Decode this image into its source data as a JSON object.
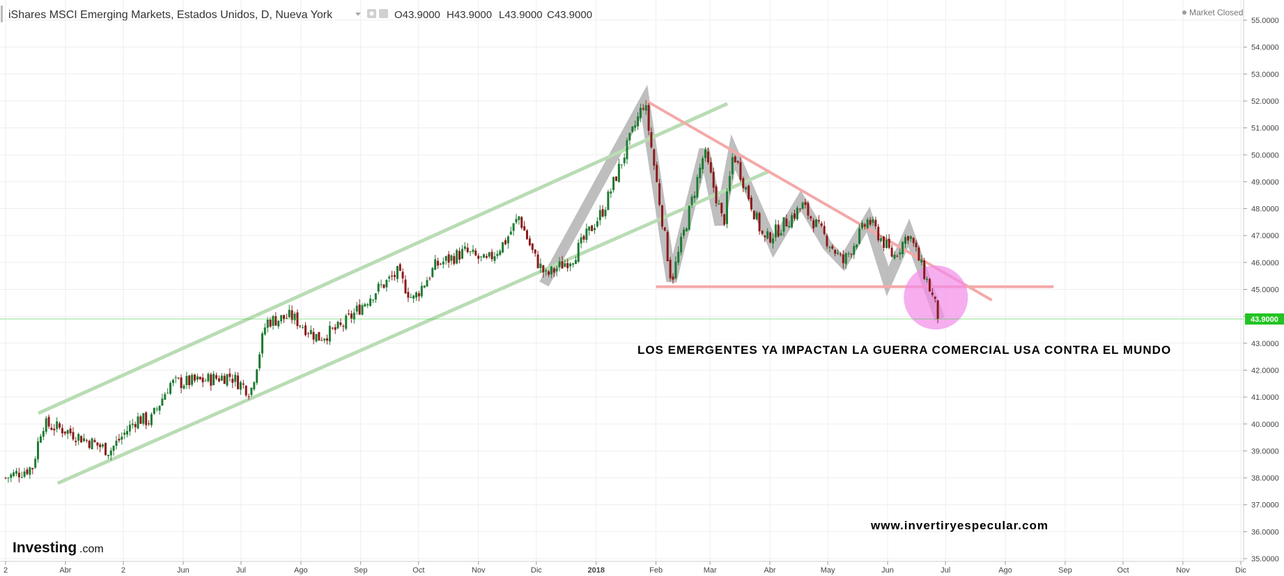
{
  "header": {
    "title": "iShares MSCI Emerging Markets, Estados Unidos, D, Nueva York",
    "open": "O43.9000",
    "high": "H43.9000",
    "low": "L43.9000",
    "close": "C43.9000",
    "market_status": "Market Closed"
  },
  "logo": {
    "main": "Investing",
    "sub": ".com"
  },
  "annotation": "LOS EMERGENTES YA IMPACTAN LA GUERRA COMERCIAL USA CONTRA EL MUNDO",
  "watermark": "www.invertiryespecular.com",
  "last_price_label": "43.9000",
  "colors": {
    "up": "#1e7b32",
    "down": "#8b1a1a",
    "channel": "#b9dcb4",
    "resistance": "#f4a9a9",
    "zigzag": "#a8a8a8",
    "highlight": "#f28ce8",
    "last_price": "#22c422",
    "grid": "#eeeeee"
  },
  "chart_data": {
    "type": "candlestick",
    "y_axis": {
      "min": 35,
      "max": 55,
      "ticks": [
        "55.0000",
        "54.0000",
        "53.0000",
        "52.0000",
        "51.0000",
        "50.0000",
        "49.0000",
        "48.0000",
        "47.0000",
        "46.0000",
        "45.0000",
        "44.0000",
        "43.0000",
        "42.0000",
        "41.0000",
        "40.0000",
        "39.0000",
        "38.0000",
        "37.0000",
        "36.0000",
        "35.0000"
      ]
    },
    "x_axis": {
      "labels": [
        "2",
        "Abr",
        "2",
        "Jun",
        "Jul",
        "Ago",
        "Sep",
        "Oct",
        "Nov",
        "Dic",
        "2018",
        "Feb",
        "Mar",
        "Abr",
        "May",
        "Jun",
        "Jul",
        "Ago",
        "Sep",
        "Oct",
        "Nov",
        "Dic"
      ],
      "months": [
        "2017-03",
        "2017-04",
        "2017-05",
        "2017-06",
        "2017-07",
        "2017-08",
        "2017-09",
        "2017-10",
        "2017-11",
        "2017-12",
        "2018-01",
        "2018-02",
        "2018-03",
        "2018-04",
        "2018-05",
        "2018-06",
        "2018-07",
        "2018-08",
        "2018-09",
        "2018-10",
        "2018-11",
        "2018-12"
      ]
    },
    "price_path": [
      [
        "2017-03-01",
        38.0
      ],
      [
        "2017-03-15",
        38.4
      ],
      [
        "2017-03-20",
        40.0
      ],
      [
        "2017-03-31",
        39.8
      ],
      [
        "2017-04-15",
        39.3
      ],
      [
        "2017-04-24",
        39.0
      ],
      [
        "2017-05-08",
        40.2
      ],
      [
        "2017-05-15",
        40.1
      ],
      [
        "2017-05-25",
        41.5
      ],
      [
        "2017-06-10",
        41.6
      ],
      [
        "2017-06-25",
        41.8
      ],
      [
        "2017-07-06",
        41.2
      ],
      [
        "2017-07-14",
        43.8
      ],
      [
        "2017-07-27",
        44.0
      ],
      [
        "2017-08-10",
        43.2
      ],
      [
        "2017-08-22",
        43.6
      ],
      [
        "2017-09-08",
        44.9
      ],
      [
        "2017-09-20",
        45.6
      ],
      [
        "2017-09-28",
        44.6
      ],
      [
        "2017-10-10",
        45.9
      ],
      [
        "2017-10-25",
        46.4
      ],
      [
        "2017-11-05",
        46.0
      ],
      [
        "2017-11-15",
        46.8
      ],
      [
        "2017-11-22",
        47.7
      ],
      [
        "2017-11-30",
        46.2
      ],
      [
        "2017-12-06",
        45.5
      ],
      [
        "2017-12-20",
        46.2
      ],
      [
        "2018-01-05",
        48.0
      ],
      [
        "2018-01-26",
        52.0
      ],
      [
        "2018-02-09",
        45.3
      ],
      [
        "2018-02-26",
        50.1
      ],
      [
        "2018-03-08",
        47.4
      ],
      [
        "2018-03-13",
        50.1
      ],
      [
        "2018-03-29",
        46.8
      ],
      [
        "2018-04-05",
        47.2
      ],
      [
        "2018-04-18",
        48.1
      ],
      [
        "2018-05-01",
        46.8
      ],
      [
        "2018-05-09",
        46.0
      ],
      [
        "2018-05-22",
        47.6
      ],
      [
        "2018-06-04",
        46.2
      ],
      [
        "2018-06-12",
        47.1
      ],
      [
        "2018-06-22",
        45.2
      ],
      [
        "2018-06-28",
        43.9
      ]
    ],
    "last_close": 43.9,
    "overlays": {
      "channel_upper": [
        [
          "2017-03-18",
          40.4
        ],
        [
          "2018-03-10",
          51.9
        ]
      ],
      "channel_lower": [
        [
          "2017-03-28",
          37.8
        ],
        [
          "2018-04-01",
          49.4
        ]
      ],
      "resistance_line": [
        [
          "2018-01-27",
          52.0
        ],
        [
          "2018-07-25",
          44.6
        ]
      ],
      "support_line": [
        [
          "2018-02-01",
          45.1
        ],
        [
          "2018-08-26",
          45.1
        ]
      ],
      "zigzag": [
        [
          "2017-12-05",
          45.2
        ],
        [
          "2018-01-26",
          52.0
        ],
        [
          "2018-02-09",
          45.3
        ],
        [
          "2018-02-26",
          50.2
        ],
        [
          "2018-03-06",
          47.4
        ],
        [
          "2018-03-13",
          50.1
        ],
        [
          "2018-04-03",
          46.6
        ],
        [
          "2018-04-17",
          48.3
        ],
        [
          "2018-05-01",
          46.6
        ],
        [
          "2018-05-09",
          46.0
        ],
        [
          "2018-05-22",
          47.6
        ],
        [
          "2018-06-01",
          45.3
        ],
        [
          "2018-06-12",
          47.1
        ],
        [
          "2018-06-28",
          43.9
        ]
      ],
      "highlight_circle": {
        "date": "2018-06-26",
        "price": 44.7
      }
    }
  }
}
